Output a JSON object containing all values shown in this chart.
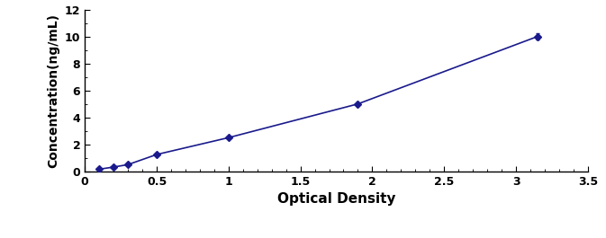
{
  "x": [
    0.1,
    0.2,
    0.3,
    0.5,
    1.0,
    1.9,
    3.15
  ],
  "y": [
    0.16,
    0.32,
    0.5,
    1.25,
    2.5,
    5.0,
    10.0
  ],
  "line_color": "#1a1a8c",
  "marker_color": "#1a1a8c",
  "marker": "D",
  "marker_size": 4,
  "line_width": 1.2,
  "xlabel": "Optical Density",
  "ylabel": "Concentration(ng/mL)",
  "xlim": [
    0,
    3.5
  ],
  "ylim": [
    0,
    12
  ],
  "xticks": [
    0.0,
    0.5,
    1.0,
    1.5,
    2.0,
    2.5,
    3.0,
    3.5
  ],
  "yticks": [
    0,
    2,
    4,
    6,
    8,
    10,
    12
  ],
  "xlabel_fontsize": 11,
  "ylabel_fontsize": 10,
  "tick_fontsize": 9,
  "xlabel_fontweight": "bold",
  "ylabel_fontweight": "bold",
  "tick_fontweight": "bold",
  "fig_width": 6.73,
  "fig_height": 2.65,
  "dpi": 100
}
